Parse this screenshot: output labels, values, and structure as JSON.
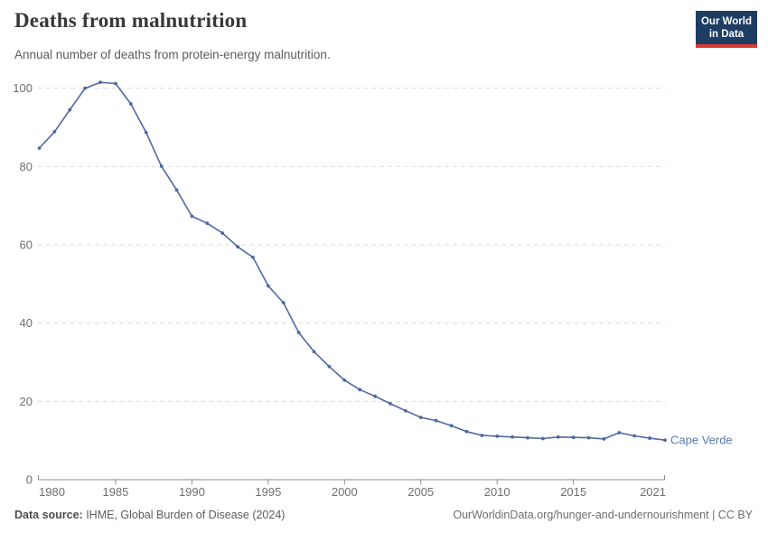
{
  "header": {
    "title": "Deaths from malnutrition",
    "subtitle": "Annual number of deaths from protein-energy malnutrition.",
    "logo_line1": "Our World",
    "logo_line2": "in Data"
  },
  "chart_data": {
    "type": "line",
    "title": "Deaths from malnutrition",
    "subtitle": "Annual number of deaths from protein-energy malnutrition.",
    "x": [
      1980,
      1981,
      1982,
      1983,
      1984,
      1985,
      1986,
      1987,
      1988,
      1989,
      1990,
      1991,
      1992,
      1993,
      1994,
      1995,
      1996,
      1997,
      1998,
      1999,
      2000,
      2001,
      2002,
      2003,
      2004,
      2005,
      2006,
      2007,
      2008,
      2009,
      2010,
      2011,
      2012,
      2013,
      2014,
      2015,
      2016,
      2017,
      2018,
      2019,
      2020,
      2021
    ],
    "series": [
      {
        "name": "Cape Verde",
        "values": [
          84.7,
          88.9,
          94.5,
          100,
          101.5,
          101.2,
          96,
          88.7,
          80.1,
          74,
          67.3,
          65.5,
          63,
          59.5,
          56.8,
          49.5,
          45.2,
          37.6,
          32.7,
          28.9,
          25.4,
          23,
          21.3,
          19.4,
          17.6,
          15.9,
          15.1,
          13.8,
          12.3,
          11.3,
          11.1,
          10.9,
          10.7,
          10.5,
          10.9,
          10.8,
          10.7,
          10.4,
          12,
          11.2,
          10.6,
          10.1
        ]
      }
    ],
    "xlabel": "",
    "ylabel": "",
    "xlim": [
      1980,
      2021
    ],
    "ylim": [
      0,
      100
    ],
    "xticks": [
      1980,
      1985,
      1990,
      1995,
      2000,
      2005,
      2010,
      2015,
      2021
    ],
    "yticks": [
      0,
      20,
      40,
      60,
      80,
      100
    ],
    "grid": "horizontal-dashed",
    "legend_position": "end-of-line-label",
    "marker": "dot"
  },
  "footer": {
    "source_label": "Data source:",
    "source_text": " IHME, Global Burden of Disease (2024)",
    "credit": "OurWorldinData.org/hunger-and-undernourishment | CC BY"
  },
  "colors": {
    "line": "#4d69a0",
    "series_label": "#567aac",
    "grid": "#dcdcdc",
    "axis": "#8f8f8f",
    "tick_text": "#6f6f6f",
    "title": "#383838",
    "subtitle": "#5d5d5d",
    "logo_bg": "#1d3d63",
    "logo_stripe": "#dc3b32"
  }
}
